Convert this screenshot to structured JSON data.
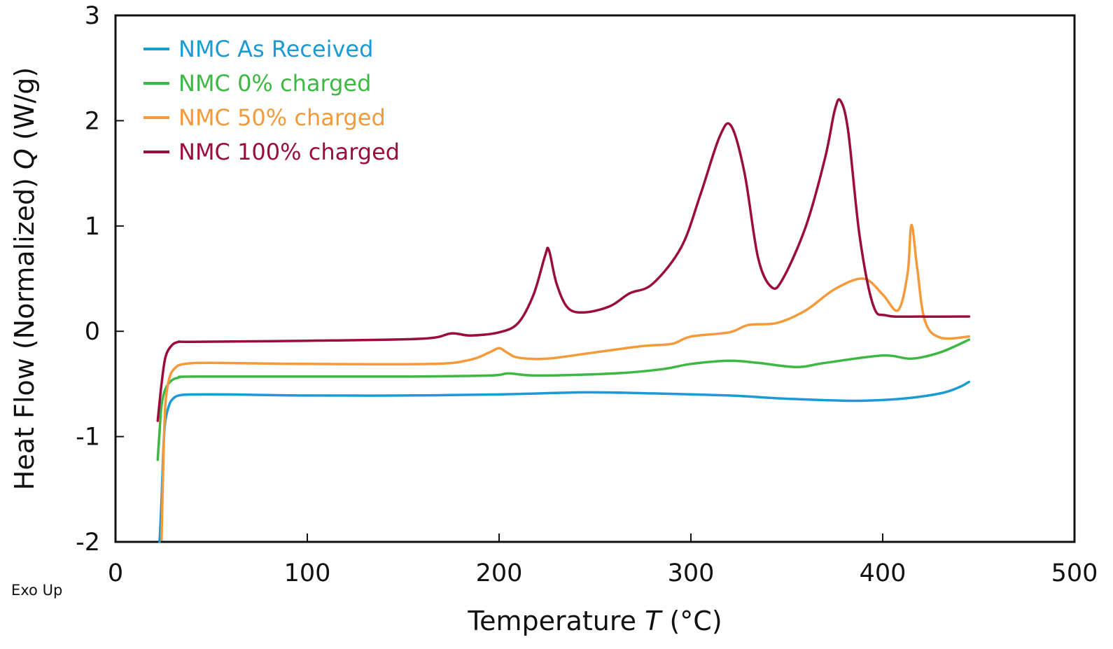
{
  "chart_data": {
    "type": "line",
    "title": "",
    "xlabel": "Temperature",
    "xlabel_symbol": "T",
    "xlabel_unit": "(°C)",
    "ylabel": "Heat Flow (Normalized)",
    "ylabel_symbol": "Q",
    "ylabel_unit": "(W/g)",
    "xlim": [
      0,
      500
    ],
    "ylim": [
      -2,
      3
    ],
    "xticks": [
      0,
      100,
      200,
      300,
      400,
      500
    ],
    "yticks": [
      -2,
      -1,
      0,
      1,
      2,
      3
    ],
    "grid": false,
    "legend_position": "top-left",
    "annotation": "Exo Up",
    "series": [
      {
        "name": "NMC As Received",
        "color": "#1b9ad6",
        "points": [
          [
            23,
            -2.0
          ],
          [
            24,
            -1.6
          ],
          [
            25,
            -1.1
          ],
          [
            26,
            -0.85
          ],
          [
            28,
            -0.7
          ],
          [
            30,
            -0.64
          ],
          [
            33,
            -0.61
          ],
          [
            40,
            -0.6
          ],
          [
            60,
            -0.6
          ],
          [
            100,
            -0.61
          ],
          [
            150,
            -0.61
          ],
          [
            200,
            -0.6
          ],
          [
            245,
            -0.58
          ],
          [
            280,
            -0.59
          ],
          [
            320,
            -0.61
          ],
          [
            350,
            -0.64
          ],
          [
            385,
            -0.66
          ],
          [
            410,
            -0.64
          ],
          [
            430,
            -0.59
          ],
          [
            440,
            -0.53
          ],
          [
            445,
            -0.48
          ]
        ]
      },
      {
        "name": "NMC 0% charged",
        "color": "#3db843",
        "points": [
          [
            22,
            -1.22
          ],
          [
            23,
            -0.95
          ],
          [
            24,
            -0.7
          ],
          [
            26,
            -0.55
          ],
          [
            29,
            -0.47
          ],
          [
            33,
            -0.44
          ],
          [
            40,
            -0.43
          ],
          [
            100,
            -0.43
          ],
          [
            150,
            -0.43
          ],
          [
            195,
            -0.42
          ],
          [
            205,
            -0.4
          ],
          [
            220,
            -0.42
          ],
          [
            260,
            -0.4
          ],
          [
            285,
            -0.36
          ],
          [
            300,
            -0.31
          ],
          [
            320,
            -0.28
          ],
          [
            335,
            -0.3
          ],
          [
            355,
            -0.34
          ],
          [
            370,
            -0.3
          ],
          [
            400,
            -0.23
          ],
          [
            415,
            -0.26
          ],
          [
            430,
            -0.2
          ],
          [
            445,
            -0.08
          ]
        ]
      },
      {
        "name": "NMC 50% charged",
        "color": "#f59a3a",
        "points": [
          [
            24,
            -1.98
          ],
          [
            25,
            -1.2
          ],
          [
            26,
            -0.7
          ],
          [
            28,
            -0.45
          ],
          [
            31,
            -0.35
          ],
          [
            36,
            -0.31
          ],
          [
            50,
            -0.3
          ],
          [
            100,
            -0.31
          ],
          [
            165,
            -0.31
          ],
          [
            185,
            -0.27
          ],
          [
            195,
            -0.2
          ],
          [
            200,
            -0.16
          ],
          [
            204,
            -0.2
          ],
          [
            210,
            -0.25
          ],
          [
            225,
            -0.26
          ],
          [
            250,
            -0.2
          ],
          [
            275,
            -0.14
          ],
          [
            290,
            -0.12
          ],
          [
            300,
            -0.05
          ],
          [
            320,
            -0.01
          ],
          [
            330,
            0.06
          ],
          [
            345,
            0.08
          ],
          [
            360,
            0.2
          ],
          [
            375,
            0.4
          ],
          [
            390,
            0.5
          ],
          [
            400,
            0.35
          ],
          [
            408,
            0.2
          ],
          [
            413,
            0.55
          ],
          [
            415,
            1.01
          ],
          [
            418,
            0.6
          ],
          [
            422,
            0.1
          ],
          [
            430,
            -0.06
          ],
          [
            445,
            -0.05
          ]
        ]
      },
      {
        "name": "NMC 100% charged",
        "color": "#9a0d3d",
        "points": [
          [
            22,
            -0.85
          ],
          [
            24,
            -0.5
          ],
          [
            26,
            -0.25
          ],
          [
            29,
            -0.14
          ],
          [
            33,
            -0.1
          ],
          [
            40,
            -0.1
          ],
          [
            100,
            -0.09
          ],
          [
            160,
            -0.07
          ],
          [
            175,
            -0.02
          ],
          [
            185,
            -0.04
          ],
          [
            200,
            -0.01
          ],
          [
            210,
            0.08
          ],
          [
            218,
            0.35
          ],
          [
            224,
            0.72
          ],
          [
            226,
            0.77
          ],
          [
            230,
            0.45
          ],
          [
            236,
            0.22
          ],
          [
            245,
            0.18
          ],
          [
            258,
            0.24
          ],
          [
            268,
            0.36
          ],
          [
            280,
            0.45
          ],
          [
            295,
            0.8
          ],
          [
            305,
            1.3
          ],
          [
            315,
            1.85
          ],
          [
            321,
            1.95
          ],
          [
            328,
            1.5
          ],
          [
            335,
            0.7
          ],
          [
            342,
            0.42
          ],
          [
            348,
            0.5
          ],
          [
            360,
            1.0
          ],
          [
            370,
            1.65
          ],
          [
            375,
            2.1
          ],
          [
            378,
            2.19
          ],
          [
            382,
            1.9
          ],
          [
            388,
            0.9
          ],
          [
            395,
            0.25
          ],
          [
            402,
            0.15
          ],
          [
            420,
            0.14
          ],
          [
            445,
            0.14
          ]
        ]
      }
    ]
  }
}
